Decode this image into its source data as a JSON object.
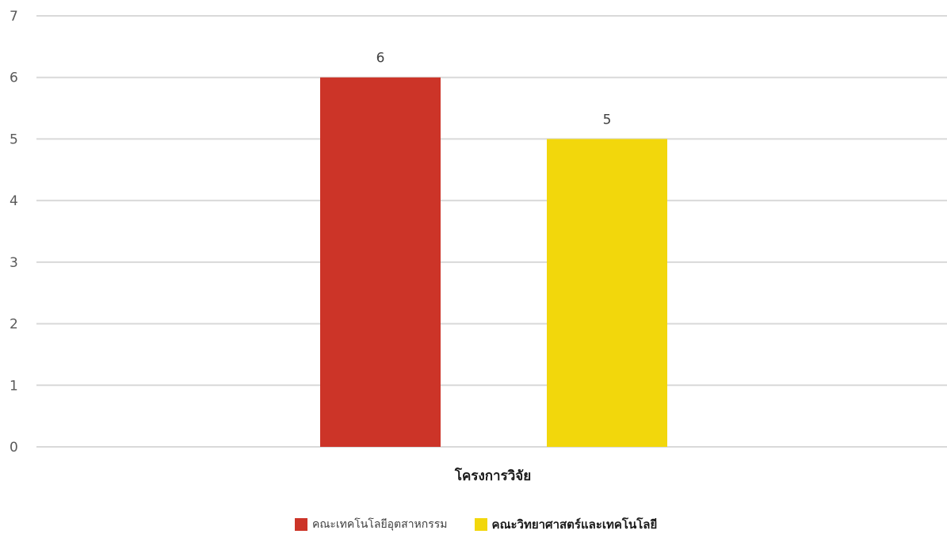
{
  "chart_data": {
    "type": "bar",
    "categories": [
      "โครงการวิจัย"
    ],
    "series": [
      {
        "name": "คณะเทคโนโลยีอุตสาหกรรม",
        "values": [
          6
        ],
        "color": "#cc3428"
      },
      {
        "name": "คณะวิทยาศาสตร์และเทคโนโลยี",
        "values": [
          5
        ],
        "color": "#f2d70c"
      }
    ],
    "ylim": [
      0,
      7
    ],
    "yticks": [
      "0",
      "1",
      "2",
      "3",
      "4",
      "5",
      "6",
      "7"
    ],
    "grid": true,
    "legend": "bottom",
    "data_labels": [
      "6",
      "5"
    ]
  }
}
